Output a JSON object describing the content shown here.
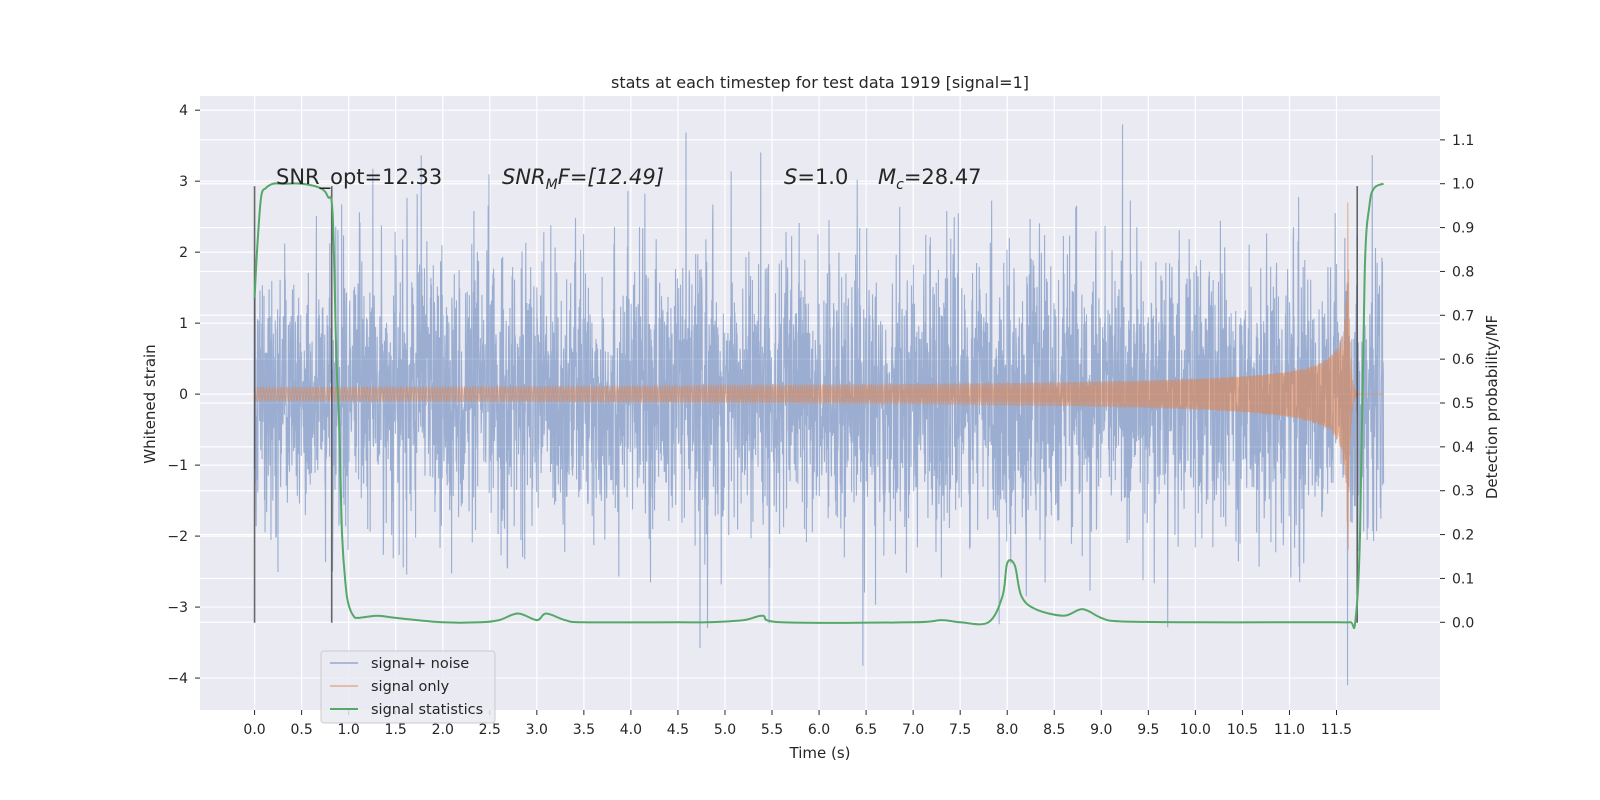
{
  "chart_data": {
    "type": "line",
    "title": "stats at each timestep for test data 1919 [signal=1]",
    "xlabel": "Time (s)",
    "ylabel_left": "Whitened strain",
    "ylabel_right": "Detection probability/MF",
    "xlim": [
      -0.58,
      12.6
    ],
    "ylim_left": [
      -4.45,
      4.2
    ],
    "ylim_right": [
      -0.2,
      1.2
    ],
    "x_ticks": [
      "0.0",
      "0.5",
      "1.0",
      "1.5",
      "2.0",
      "2.5",
      "3.0",
      "3.5",
      "4.0",
      "4.5",
      "5.0",
      "5.5",
      "6.0",
      "6.5",
      "7.0",
      "7.5",
      "8.0",
      "8.5",
      "9.0",
      "9.5",
      "10.0",
      "10.5",
      "11.0",
      "11.5"
    ],
    "y_left_ticks": [
      "−4",
      "−3",
      "−2",
      "−1",
      "0",
      "1",
      "2",
      "3",
      "4"
    ],
    "y_right_ticks": [
      "0.0",
      "0.1",
      "0.2",
      "0.3",
      "0.4",
      "0.5",
      "0.6",
      "0.7",
      "0.8",
      "0.9",
      "1.0",
      "1.1"
    ],
    "grid": true,
    "legend_position": "lower-left",
    "annotations": {
      "snr_opt": "SNR_opt=12.33",
      "snr_mf_base": "SNR",
      "snr_mf_sub": "M",
      "snr_mf_tail": "F=[12.49]",
      "s_base": "S",
      "s_tail": "=1.0",
      "mc_base": "M",
      "mc_sub": "c",
      "mc_tail": "=28.47"
    },
    "vertical_lines_x": [
      0.0,
      0.82,
      11.72
    ],
    "series": [
      {
        "name": "signal+ noise",
        "color": "#4c72b0",
        "description_values": {
          "x_range": [
            0.0,
            12.0
          ],
          "typical_amplitude": 1.6,
          "peaks": [
            3.8,
            -4.1
          ]
        }
      },
      {
        "name": "signal only",
        "color": "#dd8452",
        "chirp": {
          "start_amp_visible_x": 6.5,
          "merger_x": 11.62,
          "peak_amp": 2.7,
          "ringdown_end_x": 11.75
        }
      },
      {
        "name": "signal statistics",
        "color": "#55a868",
        "x": [
          0.0,
          0.03,
          0.07,
          0.12,
          0.2,
          0.3,
          0.5,
          0.7,
          0.78,
          0.83,
          0.87,
          0.9,
          0.93,
          0.97,
          1.0,
          1.05,
          1.1,
          1.3,
          1.5,
          2.0,
          2.4,
          2.6,
          2.8,
          3.0,
          3.1,
          3.3,
          3.5,
          4.5,
          4.8,
          5.2,
          5.4,
          5.6,
          7.0,
          7.3,
          7.5,
          7.8,
          7.95,
          8.0,
          8.08,
          8.15,
          8.3,
          8.6,
          8.8,
          9.0,
          9.2,
          10.0,
          11.0,
          11.5,
          11.65,
          11.7,
          11.75,
          11.8,
          11.85,
          11.9,
          12.0
        ],
        "values": [
          0.74,
          0.86,
          0.97,
          0.99,
          1.0,
          1.0,
          1.0,
          0.99,
          0.97,
          0.93,
          0.6,
          0.45,
          0.2,
          0.08,
          0.04,
          0.015,
          0.01,
          0.015,
          0.01,
          0.0,
          0.0,
          0.005,
          0.02,
          0.005,
          0.02,
          0.005,
          0.0,
          0.0,
          0.0,
          0.005,
          0.015,
          0.0,
          0.0,
          0.005,
          0.0,
          0.0,
          0.06,
          0.135,
          0.13,
          0.06,
          0.03,
          0.015,
          0.03,
          0.01,
          0.002,
          0.0,
          0.0,
          0.0,
          0.0,
          0.002,
          0.2,
          0.8,
          0.95,
          0.99,
          1.0
        ]
      }
    ]
  }
}
